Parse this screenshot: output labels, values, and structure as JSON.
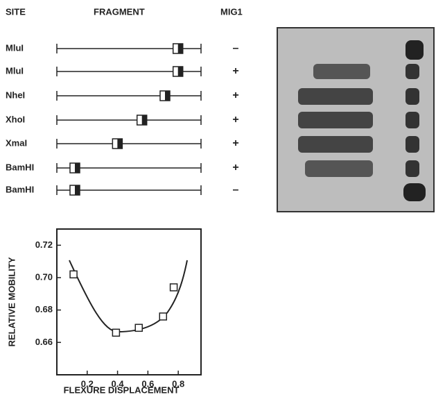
{
  "header": {
    "site": "SITE",
    "fragment": "FRAGMENT",
    "mig1": "MIG1"
  },
  "rows": [
    {
      "site": "MluI",
      "mig1": "–",
      "position": 0.84
    },
    {
      "site": "MluI",
      "mig1": "+",
      "position": 0.84
    },
    {
      "site": "NheI",
      "mig1": "+",
      "position": 0.75
    },
    {
      "site": "XhoI",
      "mig1": "+",
      "position": 0.59
    },
    {
      "site": "XmaI",
      "mig1": "+",
      "position": 0.42
    },
    {
      "site": "BamHI",
      "mig1": "+",
      "position": 0.125
    },
    {
      "site": "BamHI",
      "mig1": "–",
      "position": 0.125
    }
  ],
  "chart_data": {
    "type": "scatter",
    "xlabel": "FLEXURE DISPLACEMENT",
    "ylabel": "RELATIVE MOBILITY",
    "x": [
      0.11,
      0.39,
      0.54,
      0.7,
      0.77
    ],
    "values": [
      0.702,
      0.666,
      0.669,
      0.676,
      0.694
    ],
    "xlim": [
      0,
      0.95
    ],
    "xticks": [
      0.2,
      0.4,
      0.6,
      0.8
    ],
    "ylim": [
      0.64,
      0.73
    ],
    "yticks": [
      {
        "value": 0.66,
        "label": "0.66"
      },
      {
        "value": 0.68,
        "label": "0.68"
      },
      {
        "value": 0.7,
        "label": "0.70"
      },
      {
        "value": 0.72,
        "label": "0.72"
      }
    ]
  }
}
